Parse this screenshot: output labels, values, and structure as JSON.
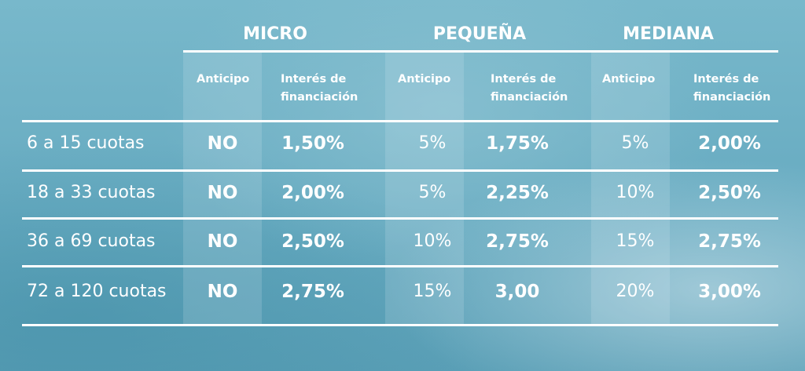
{
  "groups": [
    {
      "title": "MICRO"
    },
    {
      "title": "PEQUEÑA"
    },
    {
      "title": "MEDIANA"
    }
  ],
  "subheaders": {
    "anticipo": "Anticipo",
    "interes_line1": "Interés de",
    "interes_line2": "financiación"
  },
  "rows": [
    {
      "label": "6 a 15 cuotas",
      "cells": [
        "NO",
        "1,50%",
        "5%",
        "1,75%",
        "5%",
        "2,00%"
      ]
    },
    {
      "label": "18 a 33 cuotas",
      "cells": [
        "NO",
        "2,00%",
        "5%",
        "2,25%",
        "10%",
        "2,50%"
      ]
    },
    {
      "label": "36 a 69 cuotas",
      "cells": [
        "NO",
        "2,50%",
        "10%",
        "2,75%",
        "15%",
        "2,75%"
      ]
    },
    {
      "label": "72 a 120 cuotas",
      "cells": [
        "NO",
        "2,75%",
        "15%",
        "3,00",
        "20%",
        "3,00%"
      ]
    }
  ],
  "colors": {
    "background": "#6fb2c7",
    "text": "#ffffff",
    "rule": "#ffffff"
  }
}
